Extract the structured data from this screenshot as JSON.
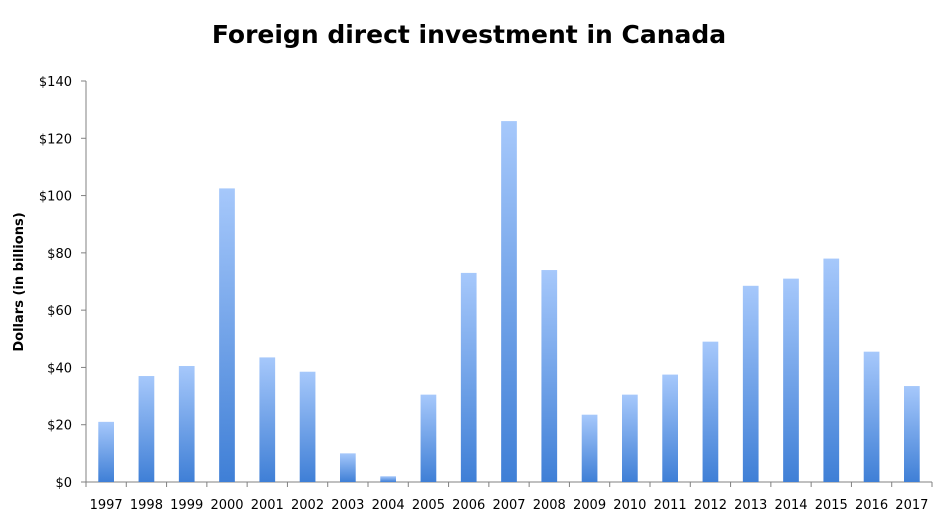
{
  "chart_data": {
    "type": "bar",
    "title": "Foreign direct investment in Canada",
    "xlabel": "",
    "ylabel": "Dollars (in billions)",
    "categories": [
      "1997",
      "1998",
      "1999",
      "2000",
      "2001",
      "2002",
      "2003",
      "2004",
      "2005",
      "2006",
      "2007",
      "2008",
      "2009",
      "2010",
      "2011",
      "2012",
      "2013",
      "2014",
      "2015",
      "2016",
      "2017"
    ],
    "values": [
      21,
      37,
      40.5,
      102.5,
      43.5,
      38.5,
      10,
      2,
      30.5,
      73,
      126,
      74,
      23.5,
      30.5,
      37.5,
      49,
      68.5,
      71,
      78,
      45.5,
      33.5
    ],
    "ylim": [
      0,
      140
    ],
    "yticks": [
      0,
      20,
      40,
      60,
      80,
      100,
      120,
      140
    ],
    "ytick_labels": [
      "$0",
      "$20",
      "$40",
      "$60",
      "$80",
      "$100",
      "$120",
      "$140"
    ],
    "grid": false,
    "legend": "none",
    "bar_color_top": "#a6c8fb",
    "bar_color_bottom": "#3f7fd6"
  }
}
